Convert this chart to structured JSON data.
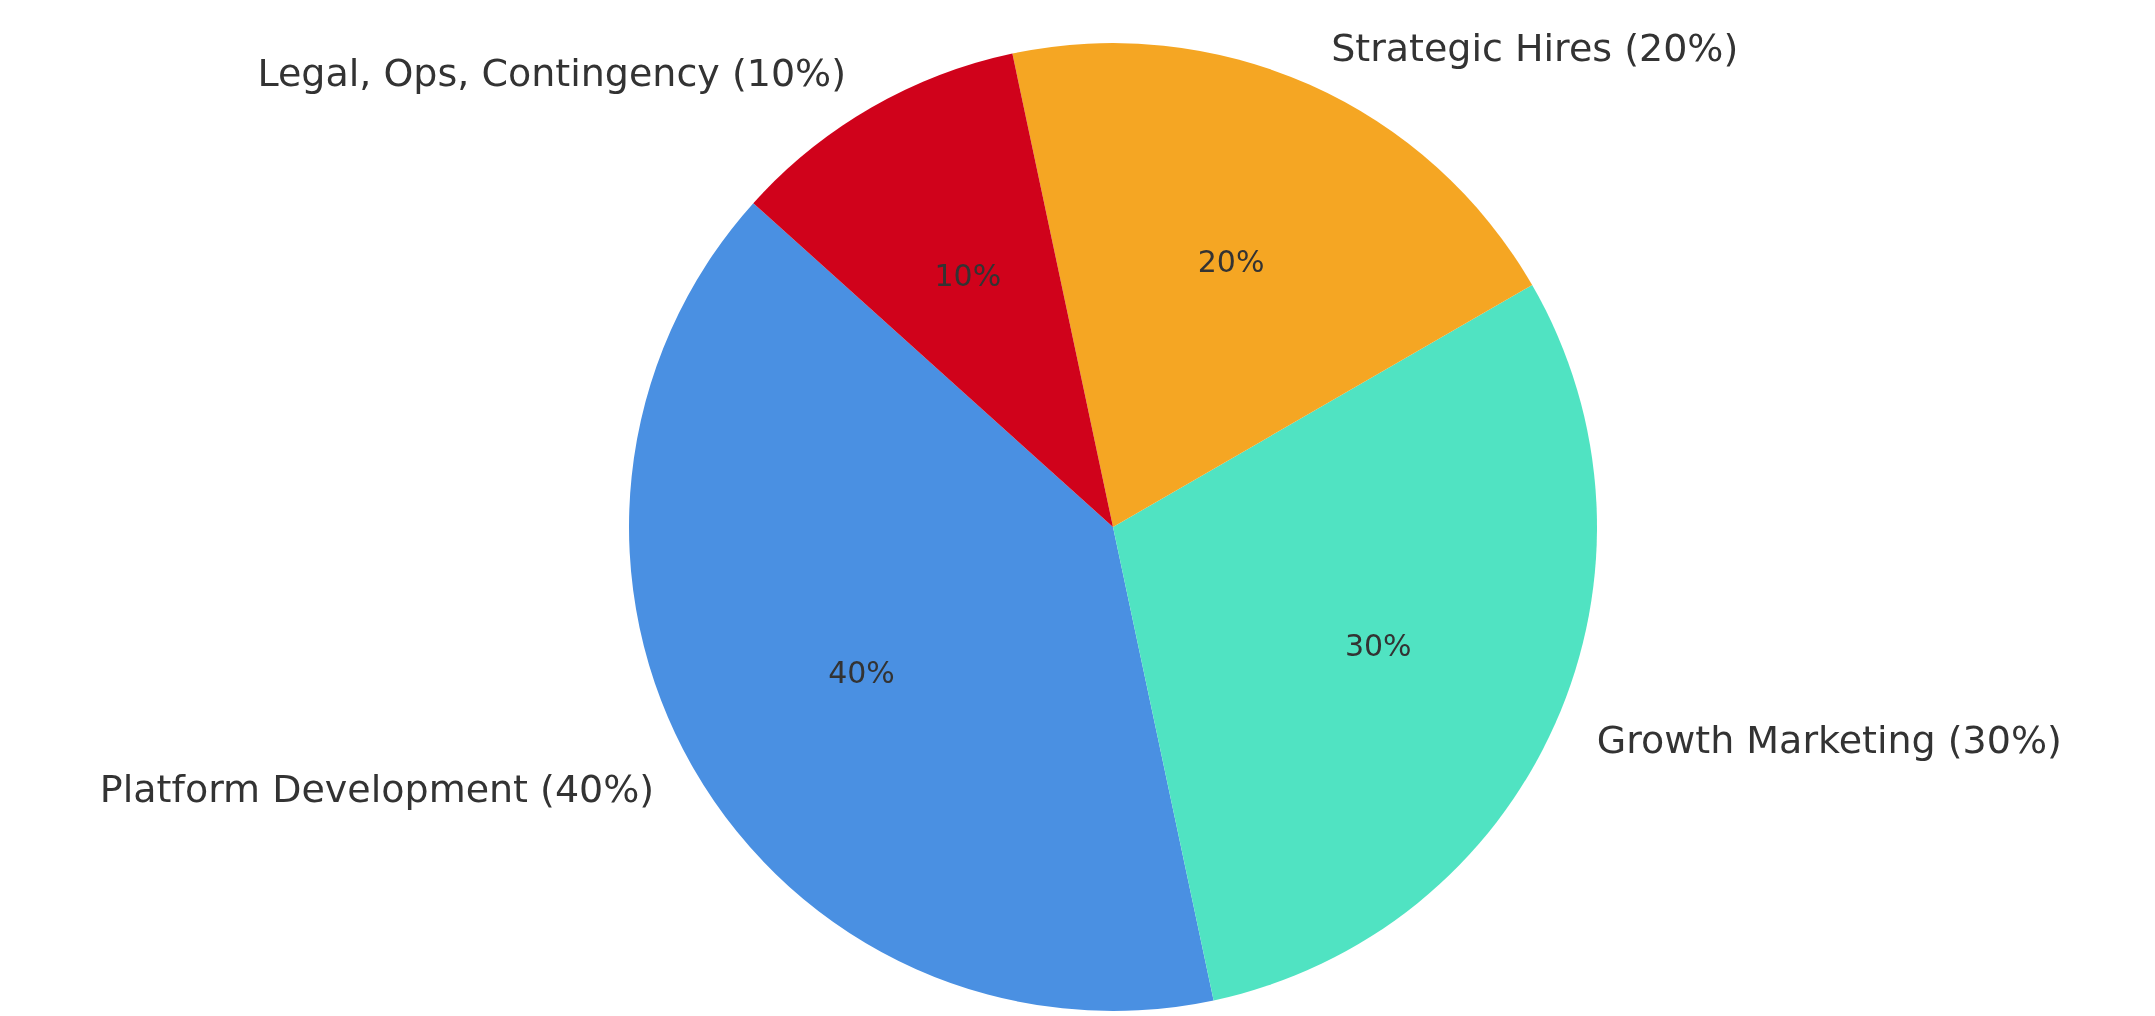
{
  "chart_data": {
    "type": "pie",
    "categories": [
      "Platform Development (40%)",
      "Growth Marketing (30%)",
      "Strategic Hires (20%)",
      "Legal, Ops, Contingency (10%)"
    ],
    "values": [
      40,
      30,
      20,
      10
    ],
    "value_labels": [
      "40%",
      "30%",
      "20%",
      "10%"
    ],
    "colors": [
      "#4a90e2",
      "#50e3c2",
      "#f5a623",
      "#d0021b"
    ],
    "legend": false
  }
}
